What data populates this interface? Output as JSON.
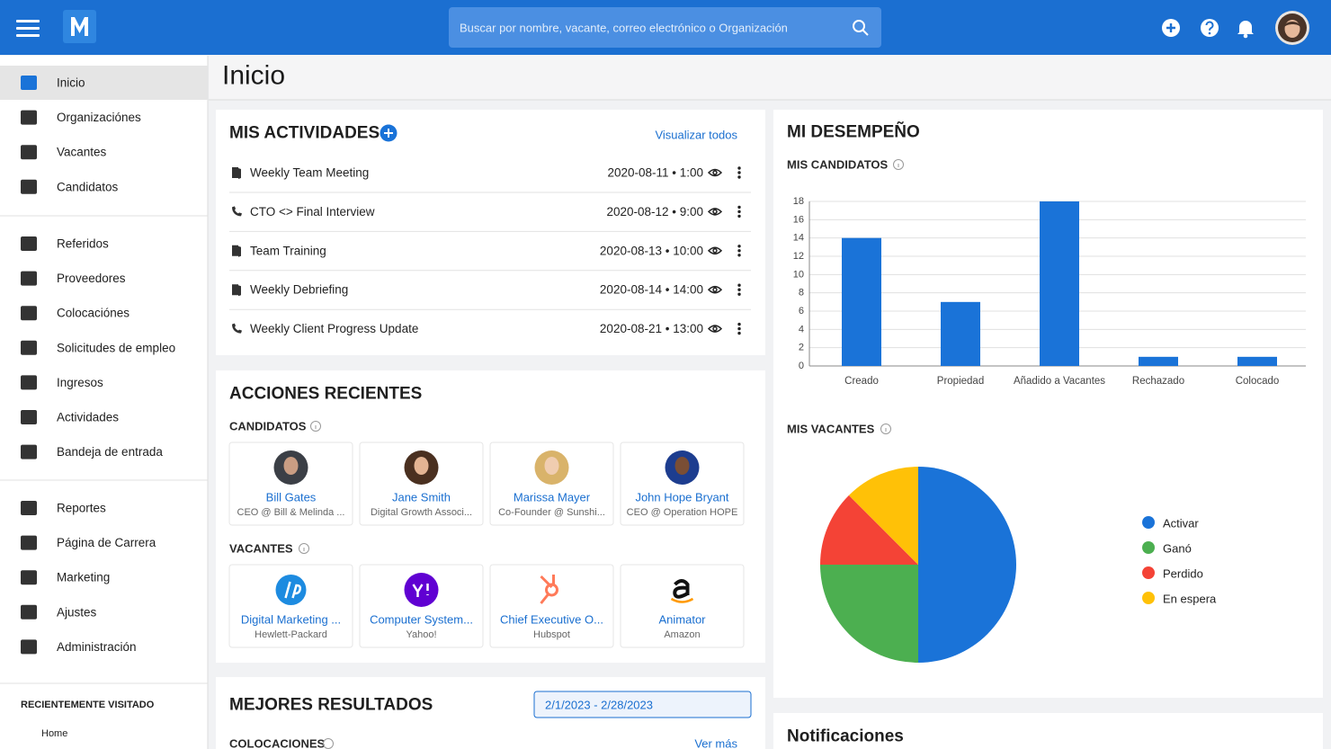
{
  "header": {
    "search_placeholder": "Buscar por nombre, vacante, correo electrónico o Organización"
  },
  "sidebar": {
    "groups": [
      [
        "Inicio",
        "Organizaciónes",
        "Vacantes",
        "Candidatos"
      ],
      [
        "Referidos",
        "Proveedores",
        "Colocaciónes",
        "Solicitudes de empleo",
        "Ingresos",
        "Actividades",
        "Bandeja de entrada"
      ],
      [
        "Reportes",
        "Página de Carrera",
        "Marketing",
        "Ajustes",
        "Administración"
      ]
    ],
    "recent_title": "RECIENTEMENTE VISITADO",
    "recent_items": [
      "Home"
    ]
  },
  "page_title": "Inicio",
  "activities": {
    "title": "MIS ACTIVIDADES",
    "view_all": "Visualizar todos",
    "items": [
      {
        "title": "Weekly Team Meeting",
        "datetime": "2020-08-11 • 1:00"
      },
      {
        "title": "CTO <> Final Interview",
        "datetime": "2020-08-12 • 9:00"
      },
      {
        "title": "Team Training",
        "datetime": "2020-08-13 • 10:00"
      },
      {
        "title": "Weekly Debriefing",
        "datetime": "2020-08-14 • 14:00"
      },
      {
        "title": "Weekly Client Progress Update",
        "datetime": "2020-08-21 • 13:00"
      }
    ]
  },
  "recent_actions": {
    "title": "ACCIONES RECIENTES",
    "candidates_label": "CANDIDATOS",
    "candidates": [
      {
        "name": "Bill Gates",
        "sub": "CEO @ Bill & Melinda ..."
      },
      {
        "name": "Jane Smith",
        "sub": "Digital Growth Associ..."
      },
      {
        "name": "Marissa Mayer",
        "sub": "Co-Founder @ Sunshi..."
      },
      {
        "name": "John Hope Bryant",
        "sub": "CEO @ Operation HOPE"
      }
    ],
    "vacancies_label": "VACANTES",
    "vacancies": [
      {
        "title": "Digital Marketing ...",
        "company": "Hewlett-Packard"
      },
      {
        "title": "Computer System...",
        "company": "Yahoo!"
      },
      {
        "title": "Chief Executive O...",
        "company": "Hubspot"
      },
      {
        "title": "Animator",
        "company": "Amazon"
      }
    ]
  },
  "best_results": {
    "title": "MEJORES RESULTADOS",
    "date_range": "2/1/2023 - 2/28/2023",
    "placements_label": "COLOCACIONES",
    "see_more": "Ver más"
  },
  "performance": {
    "title": "MI DESEMPEÑO",
    "candidates_chart": {
      "type": "bar",
      "title": "MIS CANDIDATOS",
      "categories": [
        "Creado",
        "Propiedad",
        "Añadido a Vacantes",
        "Rechazado",
        "Colocado"
      ],
      "values": [
        14,
        7,
        18,
        1,
        1
      ],
      "color": "#1a73d8",
      "ylim": [
        0,
        18
      ],
      "yticks": [
        0,
        2,
        4,
        6,
        8,
        10,
        12,
        14,
        16,
        18
      ],
      "grid": true
    },
    "vacancies_chart": {
      "type": "pie",
      "title": "MIS VACANTES",
      "categories": [
        "Activar",
        "Ganó",
        "Perdido",
        "En espera"
      ],
      "values": [
        50,
        25,
        12.5,
        12.5
      ],
      "colors": [
        "#1a73d8",
        "#4caf50",
        "#f44336",
        "#ffc107"
      ]
    }
  },
  "notifications": {
    "title": "Notificaciones"
  }
}
